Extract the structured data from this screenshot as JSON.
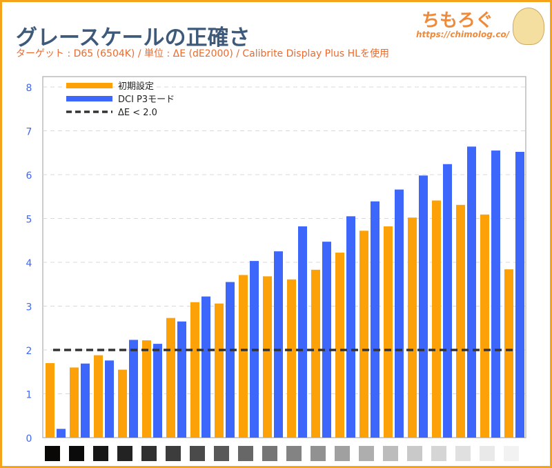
{
  "header": {
    "title": "グレースケールの正確さ",
    "subtitle": "ターゲット : D65 (6504K) / 単位 : ΔE (dE2000) / Calibrite Display Plus HLを使用"
  },
  "logo": {
    "text": "ちもろぐ",
    "url": "https://chimolog.co/"
  },
  "chart_data": {
    "type": "bar",
    "title": "グレースケールの正確さ",
    "ylim": [
      0,
      8
    ],
    "yticks": [
      0,
      1,
      2,
      3,
      4,
      5,
      6,
      7,
      8
    ],
    "grid": true,
    "legend": "top-left",
    "categories_note": "grayscale swatches",
    "swatch_colors": [
      "#0a0707",
      "#0b0b0c",
      "#161616",
      "#232323",
      "#303030",
      "#3c3c3c",
      "#4a4a4a",
      "#585858",
      "#676767",
      "#757575",
      "#838383",
      "#919191",
      "#a0a0a0",
      "#aeaeae",
      "#bcbcbc",
      "#c9c9c9",
      "#d5d5d5",
      "#e0e0e0",
      "#e9e9e9",
      "#f2f2f2"
    ],
    "series": [
      {
        "name": "初期設定",
        "color": "#fca107",
        "values": [
          1.7,
          1.6,
          1.88,
          1.55,
          2.22,
          2.73,
          3.09,
          3.06,
          3.71,
          3.68,
          3.61,
          3.83,
          4.22,
          4.72,
          4.82,
          5.02,
          5.41,
          5.31,
          5.09,
          3.84
        ]
      },
      {
        "name": "DCI P3モード",
        "color": "#3d66fb",
        "values": [
          0.2,
          1.69,
          1.76,
          2.23,
          2.14,
          2.65,
          3.22,
          3.55,
          4.03,
          4.25,
          4.82,
          4.47,
          5.05,
          5.39,
          5.66,
          5.98,
          6.24,
          6.64,
          6.55,
          6.52
        ]
      }
    ],
    "reference_line": {
      "name": "ΔE < 2.0",
      "value": 2.0,
      "color": "#333333"
    }
  }
}
